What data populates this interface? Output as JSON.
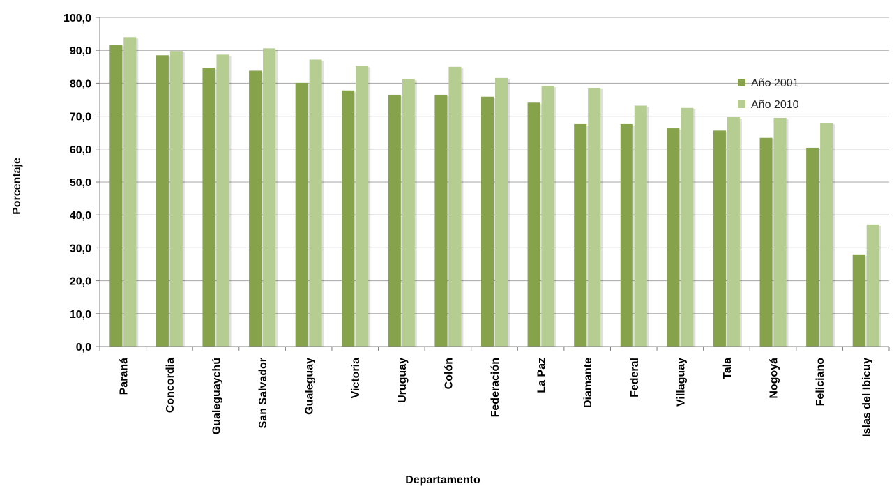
{
  "chart_data": {
    "type": "bar",
    "title": "",
    "xlabel": "Departamento",
    "ylabel": "Porcentaje",
    "ylim": [
      0,
      100
    ],
    "yticks": [
      "0,0",
      "10,0",
      "20,0",
      "30,0",
      "40,0",
      "50,0",
      "60,0",
      "70,0",
      "80,0",
      "90,0",
      "100,0"
    ],
    "grid": true,
    "legend_position": "right",
    "categories": [
      "Paraná",
      "Concordia",
      "Gualeguaychú",
      "San Salvador",
      "Gualeguay",
      "Victoria",
      "Uruguay",
      "Colón",
      "Federación",
      "La Paz",
      "Diamante",
      "Federal",
      "Villaguay",
      "Tala",
      "Nogoyá",
      "Feliciano",
      "Islas del Ibicuy"
    ],
    "series": [
      {
        "name": "Año 2001",
        "color": "#86a34c",
        "values": [
          91.7,
          88.5,
          84.7,
          83.8,
          80.1,
          77.8,
          76.5,
          76.5,
          75.9,
          74.1,
          67.6,
          67.6,
          66.3,
          65.6,
          63.4,
          60.4,
          28.0
        ]
      },
      {
        "name": "Año 2010",
        "color": "#b5cd90",
        "values": [
          94.0,
          89.8,
          88.7,
          90.6,
          87.2,
          85.3,
          81.3,
          85.0,
          81.6,
          79.2,
          78.6,
          73.2,
          72.5,
          69.7,
          69.5,
          68.0,
          37.1
        ]
      }
    ]
  }
}
